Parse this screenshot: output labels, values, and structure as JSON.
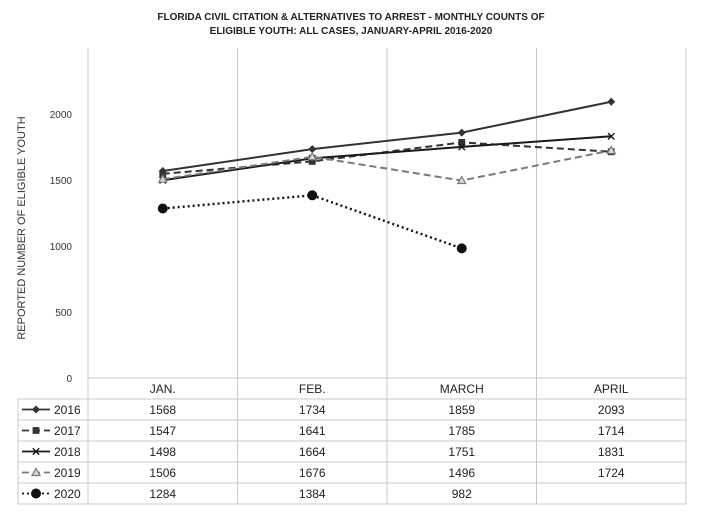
{
  "chart_data": {
    "type": "line",
    "title_lines": [
      "FLORIDA CIVIL CITATION & ALTERNATIVES TO ARREST - MONTHLY COUNTS OF",
      "ELIGIBLE YOUTH:    ALL CASES, JANUARY-APRIL 2016-2020"
    ],
    "ylabel": "REPORTED NUMBER OF ELIGIBLE YOUTH",
    "xlabel": "",
    "categories": [
      "JAN.",
      "FEB.",
      "MARCH",
      "APRIL"
    ],
    "ylim": [
      0,
      2500
    ],
    "yticks": [
      0,
      500,
      1000,
      1500,
      2000
    ],
    "ytick_labels": [
      "0",
      "500",
      "1000",
      "1500",
      "2000"
    ],
    "grid": "vertical",
    "legend": "data table below chart",
    "series": [
      {
        "name": "2016",
        "values": [
          1568,
          1734,
          1859,
          2093
        ],
        "labels": [
          "1568",
          "1734",
          "1859",
          "2093"
        ],
        "marker": "diamond",
        "dash": "solid",
        "color": "#333333"
      },
      {
        "name": "2017",
        "values": [
          1547,
          1641,
          1785,
          1714
        ],
        "labels": [
          "1547",
          "1641",
          "1785",
          "1714"
        ],
        "marker": "square",
        "dash": "dashed",
        "color": "#333333"
      },
      {
        "name": "2018",
        "values": [
          1498,
          1664,
          1751,
          1831
        ],
        "labels": [
          "1498",
          "1664",
          "1751",
          "1831"
        ],
        "marker": "x",
        "dash": "solid",
        "color": "#1a1a1a"
      },
      {
        "name": "2019",
        "values": [
          1506,
          1676,
          1496,
          1724
        ],
        "labels": [
          "1506",
          "1676",
          "1496",
          "1724"
        ],
        "marker": "triangle",
        "dash": "dashed",
        "color": "#7a7a7a"
      },
      {
        "name": "2020",
        "values": [
          1284,
          1384,
          982,
          null
        ],
        "labels": [
          "1284",
          "1384",
          "982",
          ""
        ],
        "marker": "circle",
        "dash": "dotted",
        "color": "#111111"
      }
    ]
  }
}
